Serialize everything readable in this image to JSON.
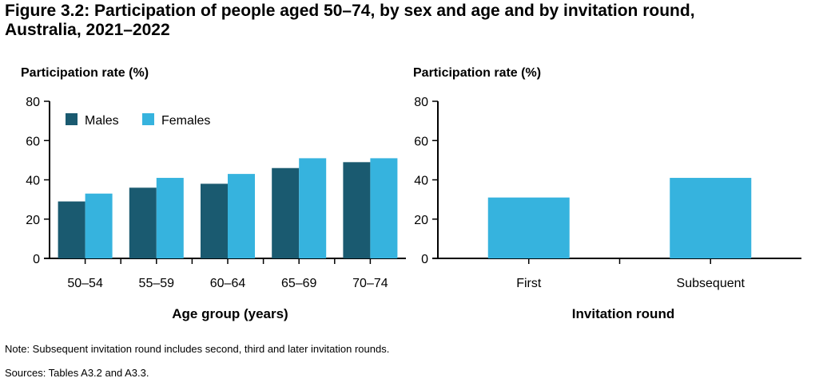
{
  "figure": {
    "title_line1": "Figure 3.2: Participation of people aged 50–74, by sex and age and by invitation round,",
    "title_line2": "Australia, 2021–2022",
    "note": "Note: Subsequent invitation round includes second, third and later invitation rounds.",
    "sources": "Sources: Tables A3.2 and A3.3."
  },
  "colors": {
    "males": "#1a5a70",
    "females": "#36b3de"
  },
  "chart_data": [
    {
      "type": "bar",
      "ylabel": "Participation rate (%)",
      "xlabel": "Age group (years)",
      "categories": [
        "50–54",
        "55–59",
        "60–64",
        "65–69",
        "70–74"
      ],
      "series": [
        {
          "name": "Males",
          "values": [
            29,
            36,
            38,
            46,
            49
          ]
        },
        {
          "name": "Females",
          "values": [
            33,
            41,
            43,
            51,
            51
          ]
        }
      ],
      "ylim": [
        0,
        80
      ],
      "yticks": [
        0,
        20,
        40,
        60,
        80
      ],
      "legend": "top-left",
      "grid": false
    },
    {
      "type": "bar",
      "ylabel": "Participation rate (%)",
      "xlabel": "Invitation round",
      "categories": [
        "First",
        "Subsequent"
      ],
      "series": [
        {
          "values": [
            31,
            41
          ]
        }
      ],
      "ylim": [
        0,
        80
      ],
      "yticks": [
        0,
        20,
        40,
        60,
        80
      ],
      "grid": false
    }
  ]
}
